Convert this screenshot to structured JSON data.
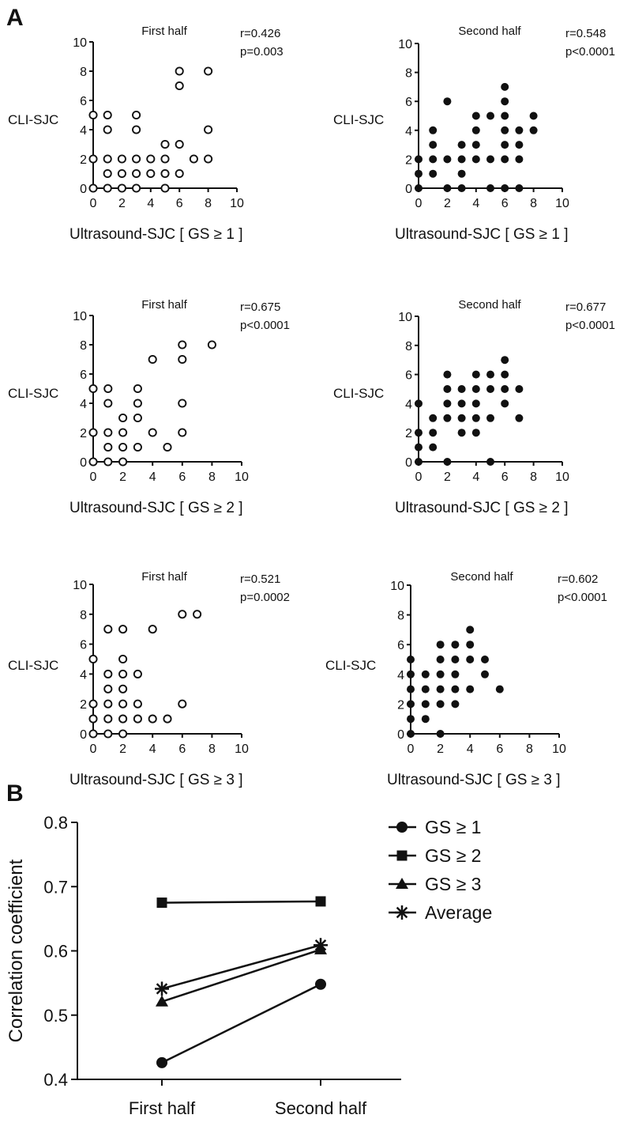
{
  "panel_a_label": "A",
  "panel_b_label": "B",
  "chart_data": [
    {
      "type": "scatter",
      "panel": "A",
      "title": "First half",
      "stat_r": "r=0.426",
      "stat_p": "p=0.003",
      "ylabel": "CLI-SJC",
      "xlabel": "Ultrasound-SJC [ GS  ≥ 1 ]",
      "xlim": [
        0,
        10
      ],
      "ylim": [
        0,
        10
      ],
      "xticks": [
        "0",
        "2",
        "4",
        "6",
        "8",
        "10"
      ],
      "yticks": [
        "0",
        "2",
        "4",
        "6",
        "8",
        "10"
      ],
      "marker": "open",
      "points": [
        [
          0,
          5
        ],
        [
          0,
          2
        ],
        [
          0,
          0
        ],
        [
          1,
          5
        ],
        [
          1,
          4
        ],
        [
          1,
          2
        ],
        [
          1,
          1
        ],
        [
          1,
          0
        ],
        [
          2,
          2
        ],
        [
          2,
          1
        ],
        [
          2,
          0
        ],
        [
          3,
          5
        ],
        [
          3,
          4
        ],
        [
          3,
          2
        ],
        [
          3,
          1
        ],
        [
          3,
          0
        ],
        [
          4,
          2
        ],
        [
          4,
          1
        ],
        [
          5,
          3
        ],
        [
          5,
          2
        ],
        [
          5,
          1
        ],
        [
          5,
          0
        ],
        [
          6,
          8
        ],
        [
          6,
          7
        ],
        [
          6,
          3
        ],
        [
          6,
          1
        ],
        [
          7,
          2
        ],
        [
          8,
          8
        ],
        [
          8,
          4
        ],
        [
          8,
          2
        ]
      ]
    },
    {
      "type": "scatter",
      "panel": "A",
      "title": "Second half",
      "stat_r": "r=0.548",
      "stat_p": "p<0.0001",
      "ylabel": "CLI-SJC",
      "xlabel": "Ultrasound-SJC [ GS  ≥ 1 ]",
      "xlim": [
        0,
        10
      ],
      "ylim": [
        0,
        10
      ],
      "xticks": [
        "0",
        "2",
        "4",
        "6",
        "8",
        "10"
      ],
      "yticks": [
        "0",
        "2",
        "4",
        "6",
        "8",
        "10"
      ],
      "marker": "filled",
      "points": [
        [
          0,
          2
        ],
        [
          0,
          1
        ],
        [
          0,
          0
        ],
        [
          1,
          4
        ],
        [
          1,
          3
        ],
        [
          1,
          2
        ],
        [
          1,
          1
        ],
        [
          2,
          6
        ],
        [
          2,
          2
        ],
        [
          2,
          0
        ],
        [
          3,
          3
        ],
        [
          3,
          2
        ],
        [
          3,
          1
        ],
        [
          3,
          0
        ],
        [
          4,
          5
        ],
        [
          4,
          4
        ],
        [
          4,
          3
        ],
        [
          4,
          2
        ],
        [
          5,
          5
        ],
        [
          5,
          2
        ],
        [
          5,
          0
        ],
        [
          6,
          7
        ],
        [
          6,
          6
        ],
        [
          6,
          5
        ],
        [
          6,
          4
        ],
        [
          6,
          3
        ],
        [
          6,
          2
        ],
        [
          6,
          0
        ],
        [
          7,
          4
        ],
        [
          7,
          3
        ],
        [
          7,
          2
        ],
        [
          7,
          0
        ],
        [
          8,
          5
        ],
        [
          8,
          4
        ]
      ]
    },
    {
      "type": "scatter",
      "panel": "A",
      "title": "First half",
      "stat_r": "r=0.675",
      "stat_p": "p<0.0001",
      "ylabel": "CLI-SJC",
      "xlabel": "Ultrasound-SJC [ GS  ≥ 2 ]",
      "xlim": [
        0,
        10
      ],
      "ylim": [
        0,
        10
      ],
      "xticks": [
        "0",
        "2",
        "4",
        "6",
        "8",
        "10"
      ],
      "yticks": [
        "0",
        "2",
        "4",
        "6",
        "8",
        "10"
      ],
      "marker": "open",
      "points": [
        [
          0,
          5
        ],
        [
          0,
          2
        ],
        [
          0,
          0
        ],
        [
          1,
          5
        ],
        [
          1,
          4
        ],
        [
          1,
          2
        ],
        [
          1,
          1
        ],
        [
          1,
          0
        ],
        [
          2,
          3
        ],
        [
          2,
          2
        ],
        [
          2,
          1
        ],
        [
          2,
          0
        ],
        [
          3,
          5
        ],
        [
          3,
          4
        ],
        [
          3,
          3
        ],
        [
          3,
          1
        ],
        [
          4,
          7
        ],
        [
          4,
          2
        ],
        [
          5,
          1
        ],
        [
          6,
          8
        ],
        [
          6,
          7
        ],
        [
          6,
          4
        ],
        [
          6,
          2
        ],
        [
          8,
          8
        ]
      ]
    },
    {
      "type": "scatter",
      "panel": "A",
      "title": "Second half",
      "stat_r": "r=0.677",
      "stat_p": "p<0.0001",
      "ylabel": "CLI-SJC",
      "xlabel": "Ultrasound-SJC [ GS  ≥ 2 ]",
      "xlim": [
        0,
        10
      ],
      "ylim": [
        0,
        10
      ],
      "xticks": [
        "0",
        "2",
        "4",
        "6",
        "8",
        "10"
      ],
      "yticks": [
        "0",
        "2",
        "4",
        "6",
        "8",
        "10"
      ],
      "marker": "filled",
      "points": [
        [
          0,
          4
        ],
        [
          0,
          2
        ],
        [
          0,
          1
        ],
        [
          0,
          0
        ],
        [
          1,
          3
        ],
        [
          1,
          2
        ],
        [
          1,
          1
        ],
        [
          2,
          6
        ],
        [
          2,
          5
        ],
        [
          2,
          4
        ],
        [
          2,
          3
        ],
        [
          2,
          0
        ],
        [
          3,
          5
        ],
        [
          3,
          4
        ],
        [
          3,
          3
        ],
        [
          4,
          6
        ],
        [
          4,
          5
        ],
        [
          4,
          4
        ],
        [
          4,
          3
        ],
        [
          4,
          2
        ],
        [
          3,
          2
        ],
        [
          5,
          6
        ],
        [
          5,
          5
        ],
        [
          5,
          3
        ],
        [
          5,
          0
        ],
        [
          6,
          7
        ],
        [
          6,
          6
        ],
        [
          6,
          5
        ],
        [
          6,
          4
        ],
        [
          7,
          5
        ],
        [
          7,
          3
        ]
      ]
    },
    {
      "type": "scatter",
      "panel": "A",
      "title": "First half",
      "stat_r": "r=0.521",
      "stat_p": "p=0.0002",
      "ylabel": "CLI-SJC",
      "xlabel": "Ultrasound-SJC [ GS  ≥ 3 ]",
      "xlim": [
        0,
        10
      ],
      "ylim": [
        0,
        10
      ],
      "xticks": [
        "0",
        "2",
        "4",
        "6",
        "8",
        "10"
      ],
      "yticks": [
        "0",
        "2",
        "4",
        "6",
        "8",
        "10"
      ],
      "marker": "open",
      "points": [
        [
          0,
          5
        ],
        [
          0,
          2
        ],
        [
          0,
          1
        ],
        [
          0,
          0
        ],
        [
          1,
          7
        ],
        [
          1,
          4
        ],
        [
          1,
          3
        ],
        [
          1,
          2
        ],
        [
          1,
          1
        ],
        [
          1,
          0
        ],
        [
          2,
          7
        ],
        [
          2,
          5
        ],
        [
          2,
          4
        ],
        [
          2,
          3
        ],
        [
          2,
          2
        ],
        [
          2,
          1
        ],
        [
          2,
          0
        ],
        [
          3,
          4
        ],
        [
          3,
          2
        ],
        [
          3,
          1
        ],
        [
          4,
          7
        ],
        [
          4,
          1
        ],
        [
          5,
          1
        ],
        [
          6,
          8
        ],
        [
          6,
          2
        ],
        [
          7,
          8
        ]
      ]
    },
    {
      "type": "scatter",
      "panel": "A",
      "title": "Second half",
      "stat_r": "r=0.602",
      "stat_p": "p<0.0001",
      "ylabel": "CLI-SJC",
      "xlabel": "Ultrasound-SJC [ GS  ≥ 3 ]",
      "xlim": [
        0,
        10
      ],
      "ylim": [
        0,
        10
      ],
      "xticks": [
        "0",
        "2",
        "4",
        "6",
        "8",
        "10"
      ],
      "yticks": [
        "0",
        "2",
        "4",
        "6",
        "8",
        "10"
      ],
      "marker": "filled",
      "points": [
        [
          0,
          5
        ],
        [
          0,
          4
        ],
        [
          0,
          3
        ],
        [
          0,
          2
        ],
        [
          0,
          1
        ],
        [
          0,
          0
        ],
        [
          1,
          4
        ],
        [
          1,
          3
        ],
        [
          1,
          2
        ],
        [
          1,
          1
        ],
        [
          2,
          6
        ],
        [
          2,
          5
        ],
        [
          2,
          4
        ],
        [
          2,
          3
        ],
        [
          2,
          2
        ],
        [
          2,
          0
        ],
        [
          3,
          6
        ],
        [
          3,
          5
        ],
        [
          3,
          4
        ],
        [
          3,
          3
        ],
        [
          3,
          2
        ],
        [
          4,
          7
        ],
        [
          4,
          6
        ],
        [
          4,
          5
        ],
        [
          4,
          3
        ],
        [
          5,
          5
        ],
        [
          5,
          4
        ],
        [
          6,
          3
        ]
      ]
    },
    {
      "type": "line",
      "panel": "B",
      "ylabel": "Correlation coefficient",
      "categories": [
        "First half",
        "Second half"
      ],
      "ylim": [
        0.4,
        0.8
      ],
      "yticks": [
        "0.4",
        "0.5",
        "0.6",
        "0.7",
        "0.8"
      ],
      "legend_position": "right",
      "series": [
        {
          "name": "GS ≥ 1",
          "marker": "circle",
          "values": [
            0.426,
            0.548
          ]
        },
        {
          "name": "GS ≥ 2",
          "marker": "square",
          "values": [
            0.675,
            0.677
          ]
        },
        {
          "name": "GS ≥ 3",
          "marker": "triangle",
          "values": [
            0.521,
            0.602
          ]
        },
        {
          "name": "Average",
          "marker": "asterisk",
          "values": [
            0.541,
            0.609
          ]
        }
      ]
    }
  ]
}
